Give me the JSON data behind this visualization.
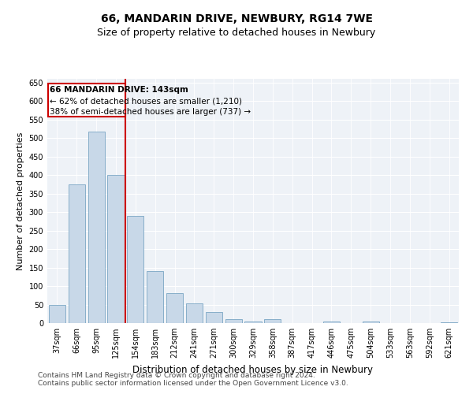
{
  "title1": "66, MANDARIN DRIVE, NEWBURY, RG14 7WE",
  "title2": "Size of property relative to detached houses in Newbury",
  "xlabel": "Distribution of detached houses by size in Newbury",
  "ylabel": "Number of detached properties",
  "categories": [
    "37sqm",
    "66sqm",
    "95sqm",
    "125sqm",
    "154sqm",
    "183sqm",
    "212sqm",
    "241sqm",
    "271sqm",
    "300sqm",
    "329sqm",
    "358sqm",
    "387sqm",
    "417sqm",
    "446sqm",
    "475sqm",
    "504sqm",
    "533sqm",
    "563sqm",
    "592sqm",
    "621sqm"
  ],
  "values": [
    50,
    375,
    518,
    400,
    290,
    140,
    80,
    54,
    29,
    11,
    5,
    11,
    0,
    0,
    4,
    0,
    4,
    0,
    0,
    0,
    3
  ],
  "bar_color": "#c8d8e8",
  "bar_edge_color": "#6699bb",
  "vline_x": 3.5,
  "vline_color": "#cc0000",
  "annotation_line1": "66 MANDARIN DRIVE: 143sqm",
  "annotation_line2": "← 62% of detached houses are smaller (1,210)",
  "annotation_line3": "38% of semi-detached houses are larger (737) →",
  "annotation_box_color": "#cc0000",
  "ylim": [
    0,
    660
  ],
  "yticks": [
    0,
    50,
    100,
    150,
    200,
    250,
    300,
    350,
    400,
    450,
    500,
    550,
    600,
    650
  ],
  "background_color": "#eef2f7",
  "grid_color": "#ffffff",
  "footer1": "Contains HM Land Registry data © Crown copyright and database right 2024.",
  "footer2": "Contains public sector information licensed under the Open Government Licence v3.0.",
  "title1_fontsize": 10,
  "title2_fontsize": 9,
  "xlabel_fontsize": 8.5,
  "ylabel_fontsize": 8,
  "tick_fontsize": 7,
  "footer_fontsize": 6.5
}
